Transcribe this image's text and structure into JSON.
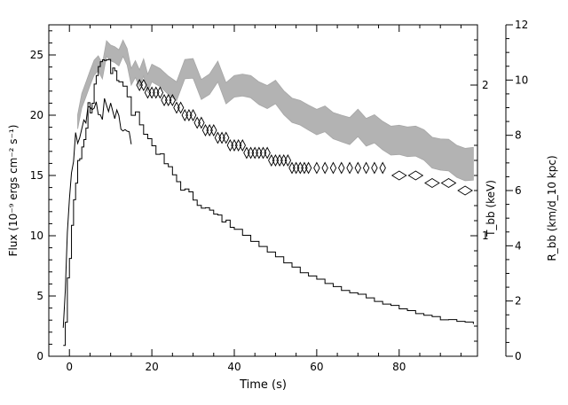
{
  "chart_data": {
    "type": "line",
    "xlabel": "Time (s)",
    "ylabel_left": "Flux (10⁻⁹ ergs cm⁻² s⁻¹)",
    "ylabel_right_inner": "T_bb (keV)",
    "ylabel_right_outer": "R_bb (km/d_10 kpc)",
    "xlim": [
      -5,
      99
    ],
    "ylim_left": [
      0,
      27.5
    ],
    "ylim_right_outer": [
      0,
      12
    ],
    "x_ticks": [
      "0",
      "20",
      "40",
      "60",
      "80"
    ],
    "y_ticks_left": [
      "0",
      "5",
      "10",
      "15",
      "20",
      "25"
    ],
    "y_ticks_right_outer": [
      "0",
      "2",
      "4",
      "6",
      "8",
      "10",
      "12"
    ],
    "y_ticks_right_inner": [
      {
        "label": "1",
        "value": 1
      },
      {
        "label": "2",
        "value": 2
      }
    ],
    "series": [
      {
        "style": "black-stepped-noisy",
        "x": [
          -1.5,
          -1,
          -0.5,
          0,
          0.5,
          1,
          1.5,
          2,
          2.5,
          3,
          3.5,
          4,
          4.5,
          5,
          5.5,
          6,
          6.5,
          7,
          7.5,
          8,
          8.5,
          9,
          9.5,
          10,
          10.5,
          11,
          11.5,
          12,
          13,
          14,
          15,
          16,
          17,
          18,
          19,
          20,
          21,
          22,
          23,
          24,
          25,
          26,
          27,
          28,
          29,
          30,
          31,
          32,
          33,
          34,
          35,
          36,
          37,
          38,
          39,
          40,
          42,
          44,
          46,
          48,
          50,
          52,
          54,
          56,
          58,
          60,
          62,
          64,
          66,
          68,
          70,
          72,
          74,
          76,
          78,
          80,
          82,
          84,
          86,
          88,
          90,
          92,
          94,
          96,
          98
        ],
        "y": [
          0.5,
          2.5,
          5.5,
          8.5,
          11,
          13,
          14.5,
          15.5,
          16.5,
          17.5,
          18.5,
          19.5,
          20.5,
          21,
          21.5,
          22,
          22.5,
          23,
          23.5,
          23.8,
          24,
          24.3,
          24.5,
          24.5,
          24.3,
          24,
          23.5,
          23,
          22,
          21,
          20.5,
          20,
          19.5,
          18.5,
          18,
          17.5,
          17,
          16.5,
          16,
          15.5,
          15,
          14.5,
          14,
          13.7,
          13.4,
          13.1,
          12.8,
          12.5,
          12.2,
          12,
          11.7,
          11.5,
          11.3,
          11.1,
          10.9,
          10.6,
          10.1,
          9.6,
          9.1,
          8.6,
          8.2,
          7.8,
          7.4,
          7,
          6.7,
          6.4,
          6.1,
          5.8,
          5.5,
          5.3,
          5.1,
          4.9,
          4.6,
          4.4,
          4.2,
          4.0,
          3.8,
          3.6,
          3.4,
          3.3,
          3.1,
          3.0,
          2.9,
          2.8,
          2.7
        ]
      },
      {
        "style": "black-noisy-trace",
        "x": [
          -1.5,
          -1,
          -0.5,
          0,
          0.5,
          1,
          1.5,
          2,
          2.5,
          3,
          3.5,
          4,
          4.5,
          5,
          5.5,
          6,
          6.5,
          7,
          7.5,
          8,
          8.5,
          9,
          9.5,
          10,
          10.5,
          11,
          11.5,
          12,
          12.5,
          13,
          13.5,
          14,
          14.5,
          15
        ],
        "y": [
          1.5,
          5,
          10,
          13.5,
          15.5,
          17,
          17.8,
          18.5,
          19,
          19.5,
          20,
          20.3,
          20.5,
          20.8,
          20.7,
          20.5,
          20.3,
          20,
          20.2,
          20.4,
          20.6,
          20.5,
          20.3,
          20.2,
          20,
          19.8,
          19.5,
          19.2,
          19,
          18.7,
          18.4,
          18.1,
          17.8,
          17.5
        ]
      },
      {
        "style": "gray-band",
        "name": "R_bb",
        "x": [
          2,
          3,
          4,
          5,
          6,
          7,
          8,
          9,
          10,
          11,
          12,
          13,
          14,
          15,
          16,
          17,
          18,
          19,
          20,
          22,
          24,
          26,
          28,
          30,
          32,
          34,
          36,
          38,
          40,
          42,
          44,
          46,
          48,
          50,
          52,
          54,
          56,
          58,
          60,
          62,
          64,
          66,
          68,
          70,
          72,
          74,
          76,
          78,
          80,
          82,
          84,
          86,
          88,
          90,
          92,
          94,
          96,
          98
        ],
        "y": [
          8.5,
          9.2,
          10,
          10.3,
          10.5,
          10.6,
          10.7,
          10.8,
          10.9,
          11,
          11,
          10.9,
          10.7,
          10.5,
          10.4,
          10.3,
          10.3,
          10.2,
          10.2,
          10.1,
          10.1,
          10,
          10,
          10,
          10,
          9.9,
          9.9,
          9.8,
          9.8,
          9.8,
          9.7,
          9.6,
          9.5,
          9.4,
          9.2,
          9,
          8.8,
          8.7,
          8.6,
          8.5,
          8.4,
          8.3,
          8.3,
          8.3,
          8.2,
          8.1,
          8,
          7.9,
          7.8,
          7.8,
          7.7,
          7.6,
          7.5,
          7.4,
          7.3,
          7.2,
          7.1,
          7.0
        ]
      },
      {
        "style": "diamonds",
        "name": "T_bb",
        "x": [
          17,
          18,
          19,
          20,
          21,
          22,
          23,
          24,
          25,
          26,
          27,
          28,
          29,
          30,
          31,
          32,
          33,
          34,
          35,
          36,
          37,
          38,
          39,
          40,
          41,
          42,
          43,
          44,
          45,
          46,
          47,
          48,
          49,
          50,
          51,
          52,
          53,
          54,
          55,
          56,
          57,
          58,
          60,
          62,
          64,
          66,
          68,
          70,
          72,
          74,
          76,
          80,
          84,
          88,
          92,
          96
        ],
        "y": [
          2.0,
          2.0,
          1.95,
          1.95,
          1.95,
          1.95,
          1.9,
          1.9,
          1.9,
          1.85,
          1.85,
          1.8,
          1.8,
          1.8,
          1.75,
          1.75,
          1.7,
          1.7,
          1.7,
          1.65,
          1.65,
          1.65,
          1.6,
          1.6,
          1.6,
          1.6,
          1.55,
          1.55,
          1.55,
          1.55,
          1.55,
          1.55,
          1.5,
          1.5,
          1.5,
          1.5,
          1.5,
          1.45,
          1.45,
          1.45,
          1.45,
          1.45,
          1.45,
          1.45,
          1.45,
          1.45,
          1.45,
          1.45,
          1.45,
          1.45,
          1.45,
          1.4,
          1.4,
          1.35,
          1.35,
          1.3
        ]
      }
    ]
  }
}
